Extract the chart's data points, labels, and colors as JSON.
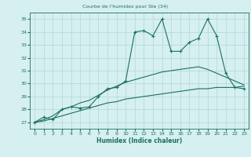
{
  "title": "Courbe de l'humidex pour Ste (34)",
  "xlabel": "Humidex (Indice chaleur)",
  "bg_color": "#d6eff0",
  "grid_color": "#b0d8da",
  "line_color": "#1a7060",
  "xlim": [
    -0.5,
    23.5
  ],
  "ylim": [
    26.5,
    35.5
  ],
  "yticks": [
    27,
    28,
    29,
    30,
    31,
    32,
    33,
    34,
    35
  ],
  "xticks": [
    0,
    1,
    2,
    3,
    4,
    5,
    6,
    7,
    8,
    9,
    10,
    11,
    12,
    13,
    14,
    15,
    16,
    17,
    18,
    19,
    20,
    21,
    22,
    23
  ],
  "line1_x": [
    0,
    1,
    2,
    3,
    4,
    5,
    6,
    7,
    8,
    9,
    10,
    11,
    12,
    13,
    14,
    15,
    16,
    17,
    18,
    19,
    20,
    21,
    22,
    23
  ],
  "line1_y": [
    27.0,
    27.4,
    27.2,
    28.0,
    28.2,
    28.1,
    28.2,
    29.0,
    29.6,
    29.7,
    30.2,
    34.0,
    34.1,
    33.7,
    35.0,
    32.5,
    32.5,
    33.2,
    33.5,
    35.0,
    33.7,
    30.8,
    29.7,
    29.6
  ],
  "line2_x": [
    0,
    1,
    2,
    3,
    4,
    5,
    6,
    7,
    8,
    9,
    10,
    11,
    12,
    13,
    14,
    15,
    16,
    17,
    18,
    19,
    20,
    21,
    22,
    23
  ],
  "line2_y": [
    27.0,
    27.2,
    27.5,
    28.0,
    28.2,
    28.5,
    28.7,
    29.1,
    29.5,
    29.8,
    30.1,
    30.3,
    30.5,
    30.7,
    30.9,
    31.0,
    31.1,
    31.2,
    31.3,
    31.1,
    30.8,
    30.5,
    30.2,
    29.9
  ],
  "line3_x": [
    0,
    1,
    2,
    3,
    4,
    5,
    6,
    7,
    8,
    9,
    10,
    11,
    12,
    13,
    14,
    15,
    16,
    17,
    18,
    19,
    20,
    21,
    22,
    23
  ],
  "line3_y": [
    27.0,
    27.1,
    27.3,
    27.5,
    27.7,
    27.9,
    28.1,
    28.3,
    28.5,
    28.6,
    28.8,
    28.9,
    29.0,
    29.1,
    29.2,
    29.3,
    29.4,
    29.5,
    29.6,
    29.6,
    29.7,
    29.7,
    29.7,
    29.8
  ]
}
